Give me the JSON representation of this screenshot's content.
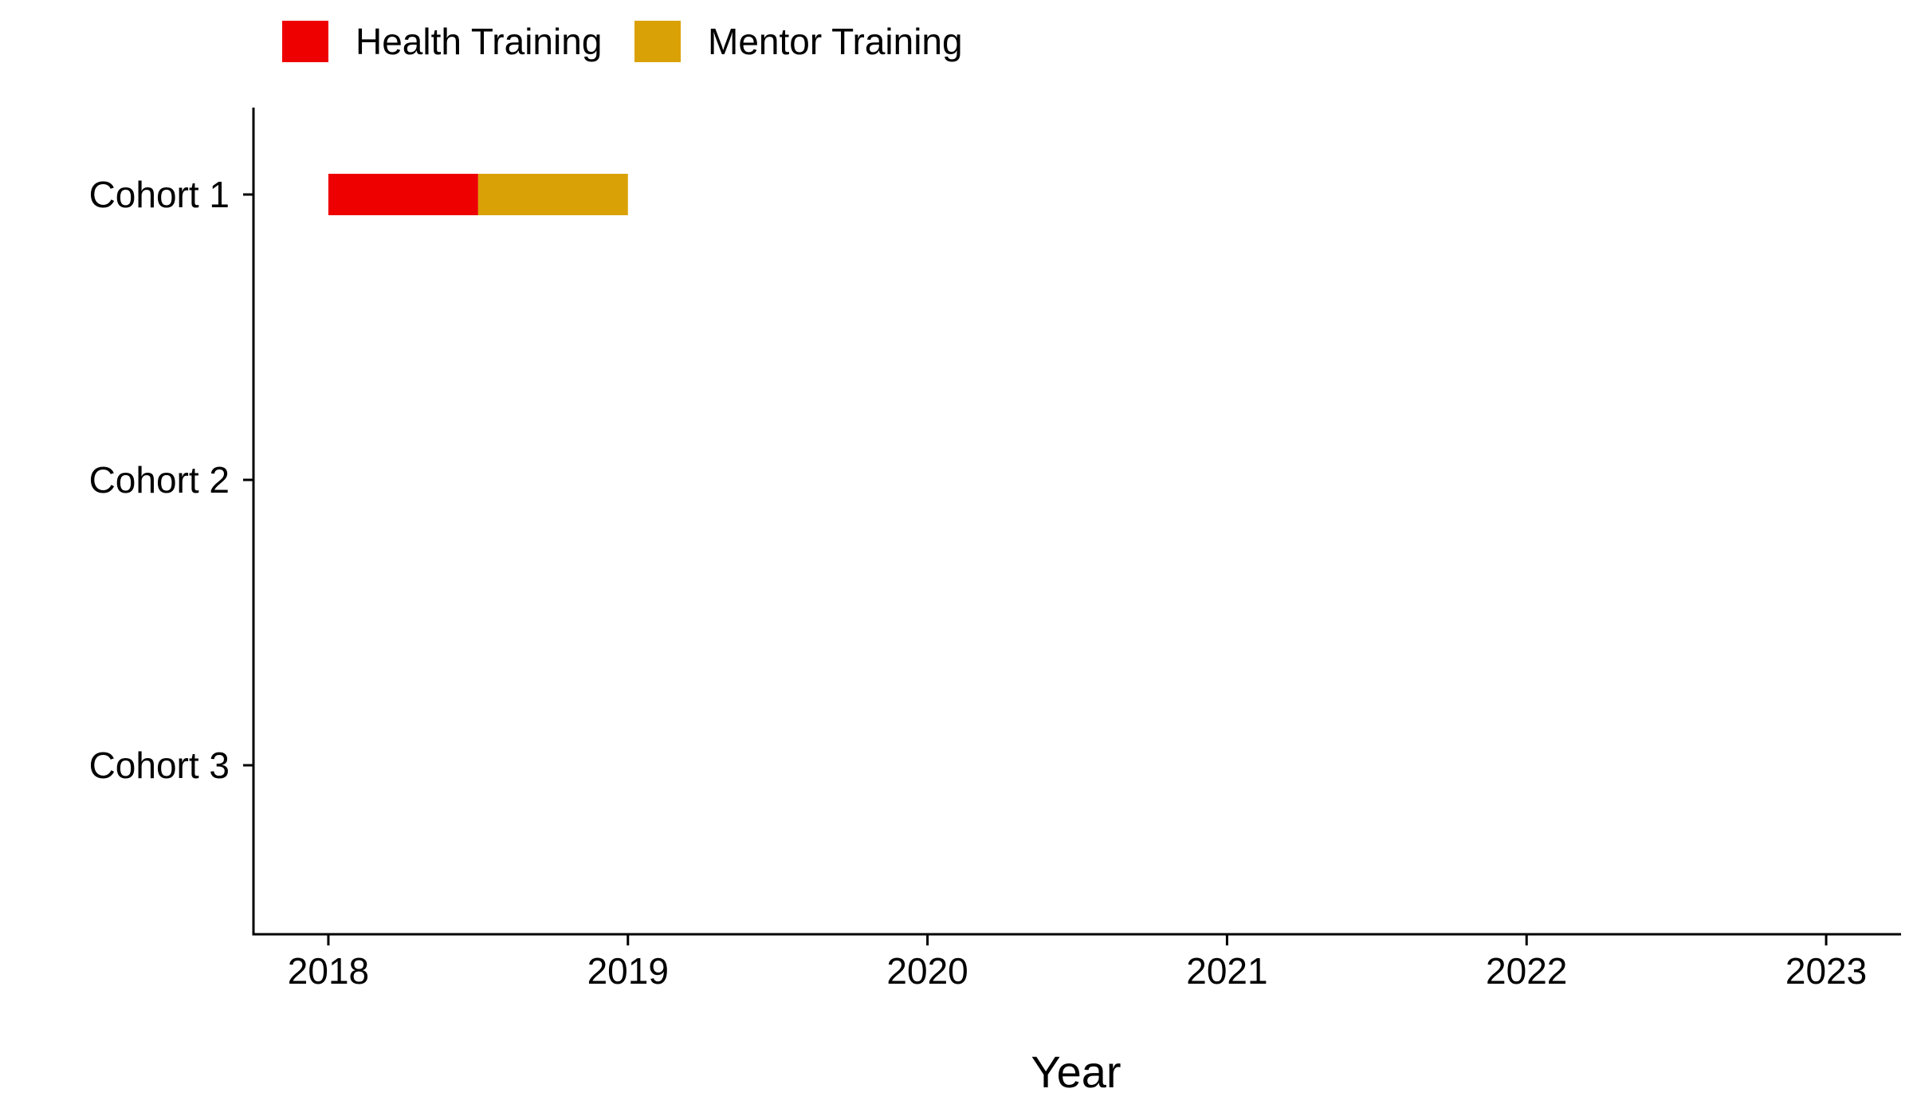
{
  "chart_data": {
    "type": "bar",
    "orientation": "horizontal",
    "stacked": true,
    "title": "",
    "xlabel": "Year",
    "ylabel": "",
    "xlim": [
      2017.75,
      2023.25
    ],
    "x_ticks": [
      2018,
      2019,
      2020,
      2021,
      2022,
      2023
    ],
    "x_tick_labels": [
      "2018",
      "2019",
      "2020",
      "2021",
      "2022",
      "2023"
    ],
    "categories": [
      "Cohort 1",
      "Cohort 2",
      "Cohort 3"
    ],
    "legend": {
      "position": "top-left",
      "entries": [
        {
          "name": "Health Training",
          "color": "#EE0000"
        },
        {
          "name": "Mentor Training",
          "color": "#DAA107"
        }
      ]
    },
    "series": [
      {
        "name": "Health Training",
        "color": "#EE0000",
        "segments": [
          {
            "category": "Cohort 1",
            "start": 2018.0,
            "end": 2018.5
          }
        ]
      },
      {
        "name": "Mentor Training",
        "color": "#DAA107",
        "segments": [
          {
            "category": "Cohort 1",
            "start": 2018.5,
            "end": 2019.0
          }
        ]
      }
    ],
    "grid": false
  }
}
